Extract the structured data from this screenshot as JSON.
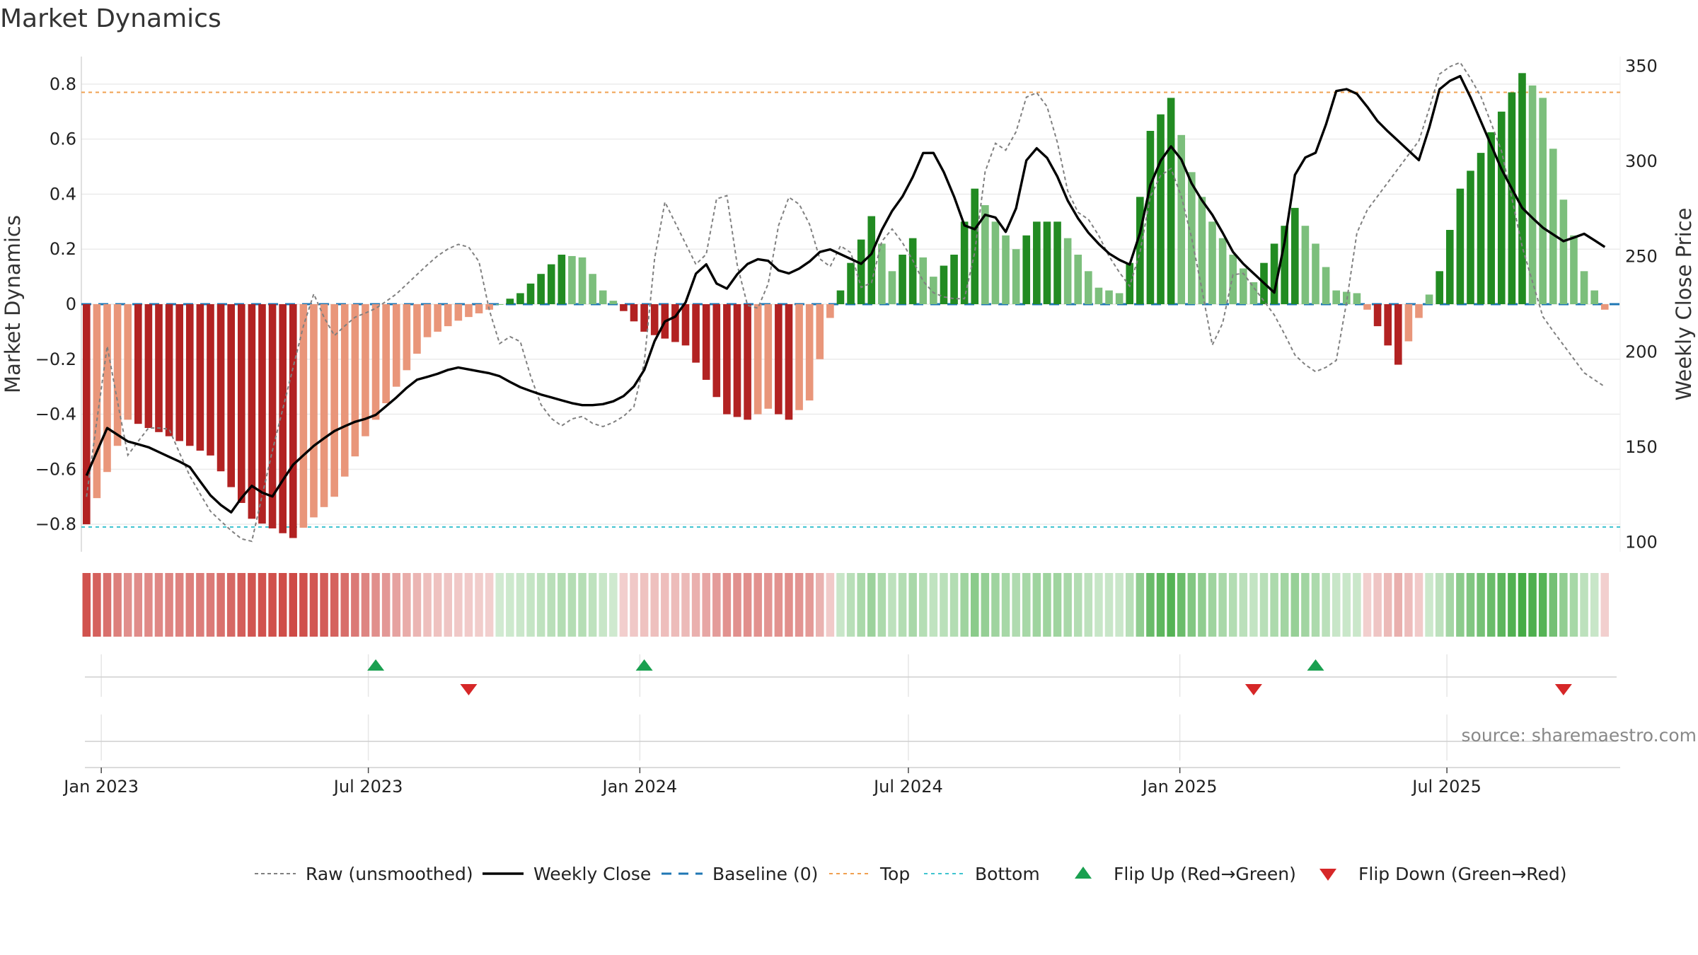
{
  "chart_data": {
    "type": "bar",
    "title": "Market Dynamics",
    "ylabel": "Market Dynamics",
    "y2label": "Weekly Close Price",
    "ylim": [
      -0.9,
      0.9
    ],
    "y2lim": [
      95,
      355
    ],
    "yticks": [
      -0.8,
      -0.6,
      -0.4,
      -0.2,
      0,
      0.2,
      0.4,
      0.6,
      0.8
    ],
    "ytick_labels": [
      "−0.8",
      "−0.6",
      "−0.4",
      "−0.2",
      "0",
      "0.2",
      "0.4",
      "0.6",
      "0.8"
    ],
    "y2ticks": [
      100,
      150,
      200,
      250,
      300,
      350
    ],
    "y2tick_labels": [
      "100",
      "150",
      "200",
      "250",
      "300",
      "350"
    ],
    "x_start": "2022-12-22",
    "x_end": "2025-10-16",
    "x_weeks": 148,
    "xticks": [
      {
        "date": "2023-01-01",
        "label": "Jan 2023"
      },
      {
        "date": "2023-07-01",
        "label": "Jul 2023"
      },
      {
        "date": "2024-01-01",
        "label": "Jan 2024"
      },
      {
        "date": "2024-07-01",
        "label": "Jul 2024"
      },
      {
        "date": "2025-01-01",
        "label": "Jan 2025"
      },
      {
        "date": "2025-07-01",
        "label": "Jul 2025"
      }
    ],
    "top_threshold": 0.77,
    "bottom_threshold": -0.81,
    "grid": true,
    "legend_position": "bottom",
    "series": [
      {
        "name": "Raw (unsmoothed)",
        "kind": "line",
        "style": "dotted",
        "color": "#808080",
        "anchors": [
          [
            0,
            -0.7
          ],
          [
            3,
            -0.15
          ],
          [
            6,
            -0.55
          ],
          [
            9,
            -0.45
          ],
          [
            12,
            -0.45
          ],
          [
            15,
            -0.62
          ],
          [
            18,
            -0.75
          ],
          [
            21,
            -0.82
          ],
          [
            24,
            -0.88
          ],
          [
            27,
            -0.55
          ],
          [
            30,
            -0.25
          ],
          [
            33,
            0.05
          ],
          [
            36,
            -0.12
          ],
          [
            39,
            -0.05
          ],
          [
            42,
            -0.02
          ],
          [
            45,
            0.03
          ],
          [
            48,
            0.1
          ],
          [
            51,
            0.17
          ],
          [
            54,
            0.22
          ],
          [
            57,
            0.2
          ],
          [
            60,
            -0.15
          ],
          [
            63,
            -0.1
          ],
          [
            66,
            -0.35
          ],
          [
            69,
            -0.45
          ],
          [
            72,
            -0.4
          ],
          [
            75,
            -0.45
          ],
          [
            78,
            -0.42
          ],
          [
            81,
            -0.35
          ],
          [
            84,
            0.4
          ],
          [
            87,
            0.25
          ],
          [
            90,
            0.1
          ],
          [
            93,
            0.5
          ],
          [
            96,
            0.0
          ],
          [
            99,
            -0.02
          ],
          [
            102,
            0.4
          ],
          [
            105,
            0.35
          ],
          [
            108,
            0.1
          ],
          [
            111,
            0.25
          ],
          [
            114,
            0.0
          ],
          [
            117,
            0.3
          ],
          [
            120,
            0.2
          ],
          [
            123,
            0.05
          ],
          [
            126,
            0.02
          ],
          [
            129,
            0.02
          ],
          [
            132,
            0.6
          ],
          [
            135,
            0.55
          ],
          [
            138,
            0.8
          ],
          [
            141,
            0.7
          ],
          [
            144,
            0.35
          ],
          [
            147,
            0.3
          ],
          [
            150,
            0.15
          ],
          [
            153,
            0.05
          ],
          [
            156,
            0.45
          ],
          [
            159,
            0.5
          ],
          [
            162,
            0.2
          ],
          [
            165,
            -0.2
          ],
          [
            168,
            0.15
          ],
          [
            171,
            0.05
          ],
          [
            174,
            -0.05
          ],
          [
            177,
            -0.2
          ],
          [
            180,
            -0.25
          ],
          [
            183,
            -0.2
          ],
          [
            186,
            0.3
          ],
          [
            189,
            0.4
          ],
          [
            192,
            0.5
          ],
          [
            195,
            0.6
          ],
          [
            198,
            0.85
          ],
          [
            201,
            0.88
          ],
          [
            204,
            0.75
          ],
          [
            207,
            0.55
          ],
          [
            210,
            0.2
          ],
          [
            213,
            -0.05
          ],
          [
            216,
            -0.15
          ],
          [
            219,
            -0.25
          ],
          [
            222,
            -0.3
          ]
        ]
      },
      {
        "name": "Weekly Close",
        "kind": "line",
        "style": "solid",
        "color": "#000000",
        "anchors": [
          [
            0,
            135
          ],
          [
            3,
            160
          ],
          [
            6,
            153
          ],
          [
            9,
            150
          ],
          [
            12,
            145
          ],
          [
            15,
            140
          ],
          [
            18,
            125
          ],
          [
            21,
            115
          ],
          [
            24,
            130
          ],
          [
            27,
            123
          ],
          [
            30,
            140
          ],
          [
            33,
            150
          ],
          [
            36,
            158
          ],
          [
            39,
            163
          ],
          [
            42,
            166
          ],
          [
            45,
            175
          ],
          [
            48,
            185
          ],
          [
            51,
            188
          ],
          [
            54,
            192
          ],
          [
            57,
            190
          ],
          [
            60,
            188
          ],
          [
            63,
            182
          ],
          [
            66,
            178
          ],
          [
            69,
            175
          ],
          [
            72,
            172
          ],
          [
            75,
            172
          ],
          [
            78,
            175
          ],
          [
            81,
            185
          ],
          [
            84,
            215
          ],
          [
            87,
            220
          ],
          [
            90,
            250
          ],
          [
            93,
            230
          ],
          [
            96,
            245
          ],
          [
            99,
            250
          ],
          [
            102,
            240
          ],
          [
            105,
            245
          ],
          [
            108,
            255
          ],
          [
            111,
            250
          ],
          [
            114,
            245
          ],
          [
            117,
            270
          ],
          [
            120,
            285
          ],
          [
            123,
            310
          ],
          [
            126,
            290
          ],
          [
            129,
            260
          ],
          [
            132,
            275
          ],
          [
            135,
            260
          ],
          [
            138,
            310
          ],
          [
            141,
            300
          ],
          [
            144,
            275
          ],
          [
            147,
            260
          ],
          [
            150,
            250
          ],
          [
            153,
            245
          ],
          [
            156,
            295
          ],
          [
            159,
            310
          ],
          [
            162,
            285
          ],
          [
            165,
            270
          ],
          [
            168,
            250
          ],
          [
            171,
            240
          ],
          [
            174,
            230
          ],
          [
            177,
            300
          ],
          [
            180,
            305
          ],
          [
            183,
            340
          ],
          [
            186,
            335
          ],
          [
            189,
            320
          ],
          [
            192,
            310
          ],
          [
            195,
            300
          ],
          [
            198,
            340
          ],
          [
            201,
            345
          ],
          [
            204,
            320
          ],
          [
            207,
            295
          ],
          [
            210,
            275
          ],
          [
            213,
            265
          ],
          [
            216,
            258
          ],
          [
            219,
            262
          ],
          [
            222,
            255
          ]
        ]
      },
      {
        "name": "Baseline (0)",
        "kind": "hline",
        "style": "dashed",
        "color": "#1f77b4",
        "value": 0
      },
      {
        "name": "Top",
        "kind": "hline",
        "style": "dotted",
        "color": "#f0a050",
        "value": 0.77
      },
      {
        "name": "Bottom",
        "kind": "hline",
        "style": "dotted",
        "color": "#40c4d0",
        "value": -0.81
      },
      {
        "name": "Flip Up (Red→Green)",
        "kind": "marker",
        "marker": "triangle-up",
        "color": "#1aa050",
        "dates": [
          "2023-07-06",
          "2024-01-04",
          "2025-04-03"
        ]
      },
      {
        "name": "Flip Down (Green→Red)",
        "kind": "marker",
        "marker": "triangle-down",
        "color": "#d62728",
        "dates": [
          "2023-09-07",
          "2025-02-20",
          "2025-09-18"
        ]
      }
    ],
    "bars": {
      "name": "Market Dynamics",
      "anchors": [
        [
          0,
          -0.8
        ],
        [
          4,
          -0.42
        ],
        [
          8,
          -0.48
        ],
        [
          12,
          -0.55
        ],
        [
          16,
          -0.78
        ],
        [
          20,
          -0.85
        ],
        [
          24,
          -0.7
        ],
        [
          27,
          -0.48
        ],
        [
          30,
          -0.3
        ],
        [
          33,
          -0.12
        ],
        [
          36,
          -0.06
        ],
        [
          39,
          -0.02
        ],
        [
          42,
          0.04
        ],
        [
          46,
          0.18
        ],
        [
          48,
          0.17
        ],
        [
          50,
          0.05
        ],
        [
          54,
          -0.1
        ],
        [
          58,
          -0.15
        ],
        [
          62,
          -0.4
        ],
        [
          64,
          -0.42
        ],
        [
          66,
          -0.38
        ],
        [
          68,
          -0.42
        ],
        [
          70,
          -0.35
        ],
        [
          72,
          -0.05
        ],
        [
          74,
          0.15
        ],
        [
          76,
          0.32
        ],
        [
          78,
          0.12
        ],
        [
          80,
          0.24
        ],
        [
          82,
          0.1
        ],
        [
          84,
          0.18
        ],
        [
          86,
          0.42
        ],
        [
          88,
          0.3
        ],
        [
          90,
          0.2
        ],
        [
          92,
          0.3
        ],
        [
          94,
          0.3
        ],
        [
          96,
          0.18
        ],
        [
          98,
          0.06
        ],
        [
          100,
          0.04
        ],
        [
          101,
          0.15
        ],
        [
          103,
          0.63
        ],
        [
          105,
          0.75
        ],
        [
          107,
          0.48
        ],
        [
          109,
          0.3
        ],
        [
          111,
          0.18
        ],
        [
          113,
          0.08
        ],
        [
          115,
          0.22
        ],
        [
          117,
          0.35
        ],
        [
          119,
          0.22
        ],
        [
          121,
          0.05
        ],
        [
          123,
          0.04
        ],
        [
          125,
          -0.08
        ],
        [
          127,
          -0.22
        ],
        [
          129,
          -0.05
        ],
        [
          131,
          0.12
        ],
        [
          133,
          0.42
        ],
        [
          135,
          0.55
        ],
        [
          137,
          0.7
        ],
        [
          139,
          0.84
        ],
        [
          141,
          0.75
        ],
        [
          143,
          0.38
        ],
        [
          145,
          0.12
        ],
        [
          147,
          -0.02
        ],
        [
          149,
          -0.22
        ]
      ]
    },
    "bar_colors": {
      "pos_strong": "#228b22",
      "pos_weak": "#7cbf7c",
      "neg_strong": "#b22222",
      "neg_weak": "#e9967a"
    },
    "strip_colors": {
      "pos": "#2ca02c",
      "neg": "#c8322d"
    }
  },
  "source": "source: sharemaestro.com"
}
